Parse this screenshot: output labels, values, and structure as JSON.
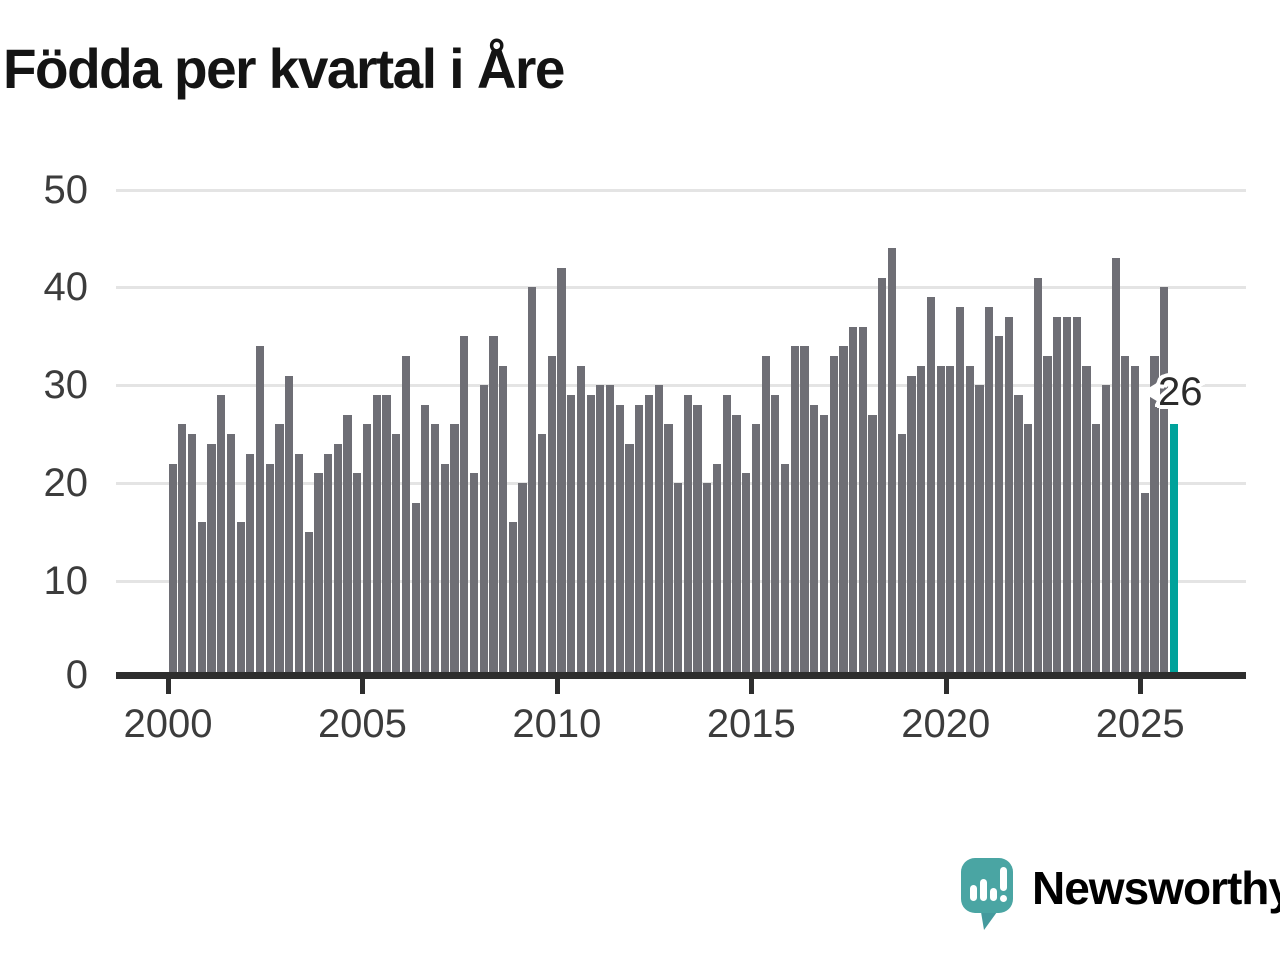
{
  "title": "Födda per kvartal i Åre",
  "chart_data": {
    "type": "bar",
    "title": "Födda per kvartal i Åre",
    "xlabel": "",
    "ylabel": "",
    "ylim": [
      0,
      52
    ],
    "grid": "horizontal",
    "legend": "none",
    "y_ticks": [
      0,
      10,
      20,
      30,
      40,
      50
    ],
    "y_tick_labels": [
      "0",
      "10",
      "20",
      "30",
      "40",
      "50"
    ],
    "x_tick_years": [
      2000,
      2005,
      2010,
      2015,
      2020,
      2025
    ],
    "x_tick_labels": [
      "2000",
      "2005",
      "2010",
      "2015",
      "2020",
      "2025"
    ],
    "categories": [
      "2000Q1",
      "2000Q2",
      "2000Q3",
      "2000Q4",
      "2001Q1",
      "2001Q2",
      "2001Q3",
      "2001Q4",
      "2002Q1",
      "2002Q2",
      "2002Q3",
      "2002Q4",
      "2003Q1",
      "2003Q2",
      "2003Q3",
      "2003Q4",
      "2004Q1",
      "2004Q2",
      "2004Q3",
      "2004Q4",
      "2005Q1",
      "2005Q2",
      "2005Q3",
      "2005Q4",
      "2006Q1",
      "2006Q2",
      "2006Q3",
      "2006Q4",
      "2007Q1",
      "2007Q2",
      "2007Q3",
      "2007Q4",
      "2008Q1",
      "2008Q2",
      "2008Q3",
      "2008Q4",
      "2009Q1",
      "2009Q2",
      "2009Q3",
      "2009Q4",
      "2010Q1",
      "2010Q2",
      "2010Q3",
      "2010Q4",
      "2011Q1",
      "2011Q2",
      "2011Q3",
      "2011Q4",
      "2012Q1",
      "2012Q2",
      "2012Q3",
      "2012Q4",
      "2013Q1",
      "2013Q2",
      "2013Q3",
      "2013Q4",
      "2014Q1",
      "2014Q2",
      "2014Q3",
      "2014Q4",
      "2015Q1",
      "2015Q2",
      "2015Q3",
      "2015Q4",
      "2016Q1",
      "2016Q2",
      "2016Q3",
      "2016Q4",
      "2017Q1",
      "2017Q2",
      "2017Q3",
      "2017Q4",
      "2018Q1",
      "2018Q2",
      "2018Q3",
      "2018Q4",
      "2019Q1",
      "2019Q2",
      "2019Q3",
      "2019Q4",
      "2020Q1",
      "2020Q2",
      "2020Q3",
      "2020Q4",
      "2021Q1",
      "2021Q2",
      "2021Q3",
      "2021Q4",
      "2022Q1",
      "2022Q2",
      "2022Q3",
      "2022Q4",
      "2023Q1",
      "2023Q2",
      "2023Q3",
      "2023Q4",
      "2024Q1",
      "2024Q2",
      "2024Q3",
      "2024Q4",
      "2025Q1",
      "2025Q2",
      "2025Q3",
      "2025Q4"
    ],
    "values": [
      22,
      26,
      25,
      16,
      24,
      29,
      25,
      16,
      23,
      34,
      22,
      26,
      31,
      23,
      15,
      21,
      23,
      24,
      27,
      21,
      26,
      29,
      29,
      25,
      33,
      18,
      28,
      26,
      22,
      26,
      35,
      21,
      30,
      35,
      32,
      16,
      20,
      40,
      25,
      33,
      42,
      29,
      32,
      29,
      30,
      30,
      28,
      24,
      28,
      29,
      30,
      26,
      20,
      29,
      28,
      20,
      22,
      29,
      27,
      21,
      26,
      33,
      29,
      22,
      34,
      34,
      28,
      27,
      33,
      34,
      36,
      36,
      27,
      41,
      44,
      25,
      31,
      32,
      39,
      32,
      32,
      38,
      32,
      30,
      38,
      35,
      37,
      29,
      26,
      41,
      33,
      37,
      37,
      37,
      32,
      26,
      30,
      43,
      33,
      32,
      19,
      33,
      40,
      26
    ],
    "highlight": {
      "index": 103,
      "category": "2025Q4",
      "value": 26,
      "label": "26",
      "color": "#00a29b"
    },
    "bar_color": "#6e6e75"
  },
  "annotation": {
    "value_label": "26"
  },
  "branding": {
    "name": "Newsworthy",
    "icon": "newsworthy-speech-bubble-bar-chart-icon"
  },
  "colors": {
    "background": "#ffffff",
    "bar": "#6e6e75",
    "highlight": "#00a29b",
    "gridline": "#e4e4e4",
    "axis": "#2e2e2e",
    "axis_label": "#3c3c3c",
    "title": "#141414",
    "annotation_text": "#2b2b2b",
    "brand": "#47a09e",
    "brand_mark": "#4aa5a3",
    "brand_mark_tail": "#449a9d"
  }
}
